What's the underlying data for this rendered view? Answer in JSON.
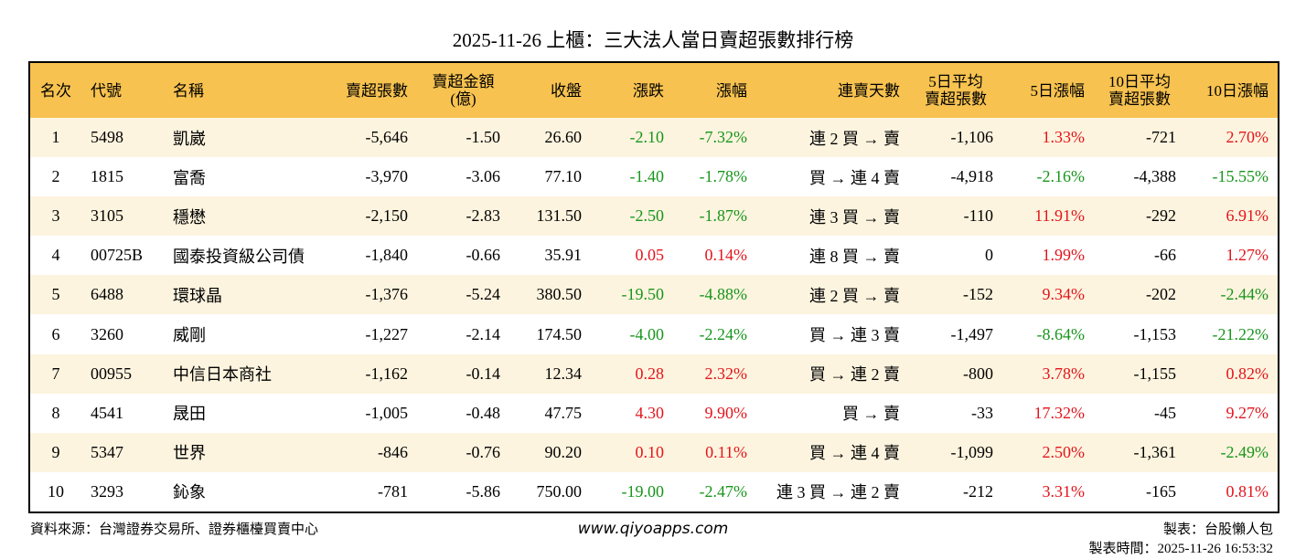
{
  "header": {
    "title": "2025-11-26 上櫃：三大法人當日賣超張數排行榜"
  },
  "table": {
    "up_color": "#e3141b",
    "down_color": "#17951b",
    "columns": [
      {
        "label": "名次",
        "align": "center",
        "signed_color": false
      },
      {
        "label": "代號",
        "align": "left",
        "signed_color": false
      },
      {
        "label": "名稱",
        "align": "left",
        "signed_color": false
      },
      {
        "label": "賣超張數",
        "align": "right",
        "signed_color": false
      },
      {
        "label": "賣超金額\n(億)",
        "align": "right",
        "signed_color": false
      },
      {
        "label": "收盤",
        "align": "right",
        "signed_color": false
      },
      {
        "label": "漲跌",
        "align": "right",
        "signed_color": true
      },
      {
        "label": "漲幅",
        "align": "right",
        "signed_color": true
      },
      {
        "label": "連賣天數",
        "align": "right",
        "signed_color": false
      },
      {
        "label": "5日平均\n賣超張數",
        "align": "right",
        "signed_color": false
      },
      {
        "label": "5日漲幅",
        "align": "right",
        "signed_color": true
      },
      {
        "label": "10日平均\n賣超張數",
        "align": "right",
        "signed_color": false
      },
      {
        "label": "10日漲幅",
        "align": "right",
        "signed_color": true
      }
    ],
    "rows": [
      [
        "1",
        "5498",
        "凱崴",
        "-5,646",
        "-1.50",
        "26.60",
        "-2.10",
        "-7.32%",
        "連 2 買 → 賣",
        "-1,106",
        "1.33%",
        "-721",
        "2.70%"
      ],
      [
        "2",
        "1815",
        "富喬",
        "-3,970",
        "-3.06",
        "77.10",
        "-1.40",
        "-1.78%",
        "買 → 連 4 賣",
        "-4,918",
        "-2.16%",
        "-4,388",
        "-15.55%"
      ],
      [
        "3",
        "3105",
        "穩懋",
        "-2,150",
        "-2.83",
        "131.50",
        "-2.50",
        "-1.87%",
        "連 3 買 → 賣",
        "-110",
        "11.91%",
        "-292",
        "6.91%"
      ],
      [
        "4",
        "00725B",
        "國泰投資級公司債",
        "-1,840",
        "-0.66",
        "35.91",
        "0.05",
        "0.14%",
        "連 8 買 → 賣",
        "0",
        "1.99%",
        "-66",
        "1.27%"
      ],
      [
        "5",
        "6488",
        "環球晶",
        "-1,376",
        "-5.24",
        "380.50",
        "-19.50",
        "-4.88%",
        "連 2 買 → 賣",
        "-152",
        "9.34%",
        "-202",
        "-2.44%"
      ],
      [
        "6",
        "3260",
        "威剛",
        "-1,227",
        "-2.14",
        "174.50",
        "-4.00",
        "-2.24%",
        "買 → 連 3 賣",
        "-1,497",
        "-8.64%",
        "-1,153",
        "-21.22%"
      ],
      [
        "7",
        "00955",
        "中信日本商社",
        "-1,162",
        "-0.14",
        "12.34",
        "0.28",
        "2.32%",
        "買 → 連 2 賣",
        "-800",
        "3.78%",
        "-1,155",
        "0.82%"
      ],
      [
        "8",
        "4541",
        "晟田",
        "-1,005",
        "-0.48",
        "47.75",
        "4.30",
        "9.90%",
        "買 → 賣",
        "-33",
        "17.32%",
        "-45",
        "9.27%"
      ],
      [
        "9",
        "5347",
        "世界",
        "-846",
        "-0.76",
        "90.20",
        "0.10",
        "0.11%",
        "買 → 連 4 賣",
        "-1,099",
        "2.50%",
        "-1,361",
        "-2.49%"
      ],
      [
        "10",
        "3293",
        "鈊象",
        "-781",
        "-5.86",
        "750.00",
        "-19.00",
        "-2.47%",
        "連 3 買 → 連 2 賣",
        "-212",
        "3.31%",
        "-165",
        "0.81%"
      ]
    ]
  },
  "footer": {
    "source": "資料來源：台灣證券交易所、證券櫃檯買賣中心",
    "url": "www.qiyoapps.com",
    "maker": "製表：台股懶人包",
    "time": "製表時間：2025-11-26 16:53:32"
  }
}
